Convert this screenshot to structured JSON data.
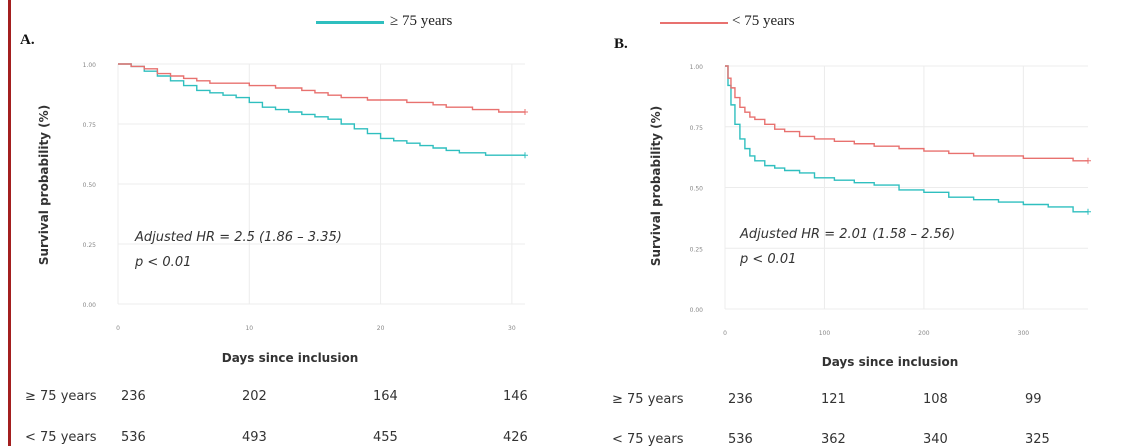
{
  "legend": {
    "ge75": {
      "label": "≥ 75 years",
      "color": "#2fbfbf"
    },
    "lt75": {
      "label": "< 75 years",
      "color": "#e8716f"
    }
  },
  "chart_data": [
    {
      "type": "line",
      "panel": "A.",
      "xlabel": "Days since inclusion",
      "ylabel": "Survival probability (%)",
      "xlim": [
        0,
        31
      ],
      "ylim": [
        0,
        1
      ],
      "xticks": [
        0,
        10,
        20,
        30
      ],
      "yticks": [
        0.0,
        0.25,
        0.5,
        0.75,
        1.0
      ],
      "ytick_labels": [
        "0.00",
        "0.25",
        "0.50",
        "0.75",
        "1.00"
      ],
      "grid": true,
      "annotation": [
        "Adjusted HR = 2.5 (1.86 – 3.35)",
        "p < 0.01"
      ],
      "series": [
        {
          "name": "≥ 75 years",
          "x": [
            0,
            1,
            2,
            3,
            4,
            5,
            6,
            7,
            8,
            9,
            10,
            11,
            12,
            13,
            14,
            15,
            16,
            17,
            18,
            19,
            20,
            21,
            22,
            23,
            24,
            25,
            26,
            27,
            28,
            29,
            30,
            31
          ],
          "y": [
            1.0,
            0.99,
            0.97,
            0.95,
            0.93,
            0.91,
            0.89,
            0.88,
            0.87,
            0.86,
            0.84,
            0.82,
            0.81,
            0.8,
            0.79,
            0.78,
            0.77,
            0.75,
            0.73,
            0.71,
            0.69,
            0.68,
            0.67,
            0.66,
            0.65,
            0.64,
            0.63,
            0.63,
            0.62,
            0.62,
            0.62,
            0.62
          ]
        },
        {
          "name": "< 75 years",
          "x": [
            0,
            1,
            2,
            3,
            4,
            5,
            6,
            7,
            8,
            9,
            10,
            11,
            12,
            13,
            14,
            15,
            16,
            17,
            18,
            19,
            20,
            21,
            22,
            23,
            24,
            25,
            26,
            27,
            28,
            29,
            30,
            31
          ],
          "y": [
            1.0,
            0.99,
            0.98,
            0.96,
            0.95,
            0.94,
            0.93,
            0.92,
            0.92,
            0.92,
            0.91,
            0.91,
            0.9,
            0.9,
            0.89,
            0.88,
            0.87,
            0.86,
            0.86,
            0.85,
            0.85,
            0.85,
            0.84,
            0.84,
            0.83,
            0.82,
            0.82,
            0.81,
            0.81,
            0.8,
            0.8,
            0.8
          ]
        }
      ],
      "risk_table": {
        "rows": [
          {
            "label": "≥ 75 years",
            "values": [
              "236",
              "202",
              "164",
              "146"
            ]
          },
          {
            "label": "< 75 years",
            "values": [
              "536",
              "493",
              "455",
              "426"
            ]
          }
        ]
      }
    },
    {
      "type": "line",
      "panel": "B.",
      "xlabel": "Days since inclusion",
      "ylabel": "Survival probability (%)",
      "xlim": [
        0,
        365
      ],
      "ylim": [
        0,
        1
      ],
      "xticks": [
        0,
        100,
        200,
        300
      ],
      "yticks": [
        0.0,
        0.25,
        0.5,
        0.75,
        1.0
      ],
      "ytick_labels": [
        "0.00",
        "0.25",
        "0.50",
        "0.75",
        "1.00"
      ],
      "grid": true,
      "annotation": [
        "Adjusted HR = 2.01 (1.58 – 2.56)",
        "p < 0.01"
      ],
      "series": [
        {
          "name": "≥ 75 years",
          "x": [
            0,
            3,
            6,
            10,
            15,
            20,
            25,
            30,
            40,
            50,
            60,
            75,
            90,
            110,
            130,
            150,
            175,
            200,
            225,
            250,
            275,
            300,
            325,
            350,
            365
          ],
          "y": [
            1.0,
            0.92,
            0.84,
            0.76,
            0.7,
            0.66,
            0.63,
            0.61,
            0.59,
            0.58,
            0.57,
            0.56,
            0.54,
            0.53,
            0.52,
            0.51,
            0.49,
            0.48,
            0.46,
            0.45,
            0.44,
            0.43,
            0.42,
            0.4,
            0.4
          ]
        },
        {
          "name": "< 75 years",
          "x": [
            0,
            3,
            6,
            10,
            15,
            20,
            25,
            30,
            40,
            50,
            60,
            75,
            90,
            110,
            130,
            150,
            175,
            200,
            225,
            250,
            275,
            300,
            325,
            350,
            365
          ],
          "y": [
            1.0,
            0.95,
            0.91,
            0.87,
            0.83,
            0.81,
            0.79,
            0.78,
            0.76,
            0.74,
            0.73,
            0.71,
            0.7,
            0.69,
            0.68,
            0.67,
            0.66,
            0.65,
            0.64,
            0.63,
            0.63,
            0.62,
            0.62,
            0.61,
            0.61
          ]
        }
      ],
      "risk_table": {
        "rows": [
          {
            "label": "≥ 75 years",
            "values": [
              "236",
              "121",
              "108",
              "99"
            ]
          },
          {
            "label": "< 75 years",
            "values": [
              "536",
              "362",
              "340",
              "325"
            ]
          }
        ]
      }
    }
  ]
}
